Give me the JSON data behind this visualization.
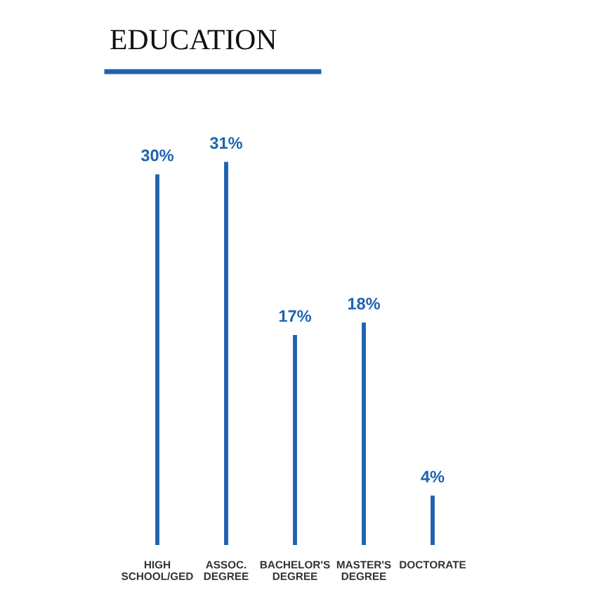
{
  "chart_data": {
    "type": "bar",
    "title": "EDUCATION",
    "categories": [
      "HIGH\nSCHOOL/GED",
      "ASSOC.\nDEGREE",
      "BACHELOR'S\nDEGREE",
      "MASTER'S\nDEGREE",
      "DOCTORATE"
    ],
    "values": [
      30,
      31,
      17,
      18,
      4
    ],
    "value_labels": [
      "30%",
      "31%",
      "17%",
      "18%",
      "4%"
    ],
    "color": "#1f63b0"
  }
}
